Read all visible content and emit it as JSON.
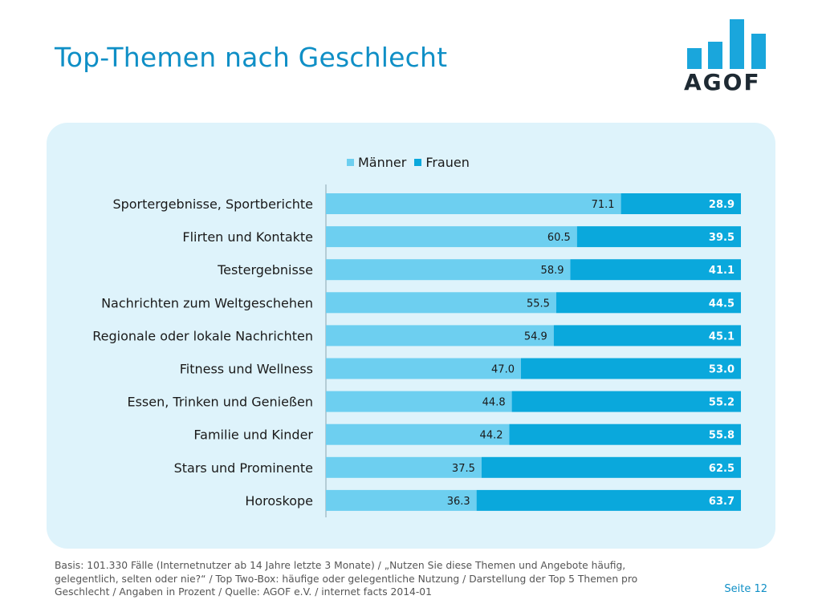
{
  "title": "Top-Themen nach Geschlecht",
  "logo_text": "AGOF",
  "colors": {
    "maenner": "#6dcff0",
    "frauen": "#0aa8dc",
    "title": "#0f8fc6",
    "panel": "#def3fb"
  },
  "chart_data": {
    "type": "bar",
    "orientation": "horizontal",
    "stacked": true,
    "percent_stacked": true,
    "categories": [
      "Sportergebnisse, Sportberichte",
      "Flirten und Kontakte",
      "Testergebnisse",
      "Nachrichten zum Weltgeschehen",
      "Regionale oder lokale Nachrichten",
      "Fitness und Wellness",
      "Essen, Trinken und Genießen",
      "Familie und Kinder",
      "Stars und Prominente",
      "Horoskope"
    ],
    "series": [
      {
        "name": "Männer",
        "values": [
          71.1,
          60.5,
          58.9,
          55.5,
          54.9,
          47.0,
          44.8,
          44.2,
          37.5,
          36.3
        ]
      },
      {
        "name": "Frauen",
        "values": [
          28.9,
          39.5,
          41.1,
          44.5,
          45.1,
          53.0,
          55.2,
          55.8,
          62.5,
          63.7
        ]
      }
    ],
    "xlim": [
      0,
      100
    ],
    "legend_position": "top",
    "grid": false
  },
  "footnote": "Basis: 101.330 Fälle (Internetnutzer ab 14 Jahre letzte 3 Monate) / „Nutzen Sie diese Themen und Angebote häufig, gelegentlich, selten oder nie?“ / Top Two-Box: häufige oder gelegentliche Nutzung / Darstellung der Top 5 Themen pro Geschlecht / Angaben in Prozent / Quelle: AGOF e.V. / internet facts 2014-01",
  "page_label": "Seite 12"
}
